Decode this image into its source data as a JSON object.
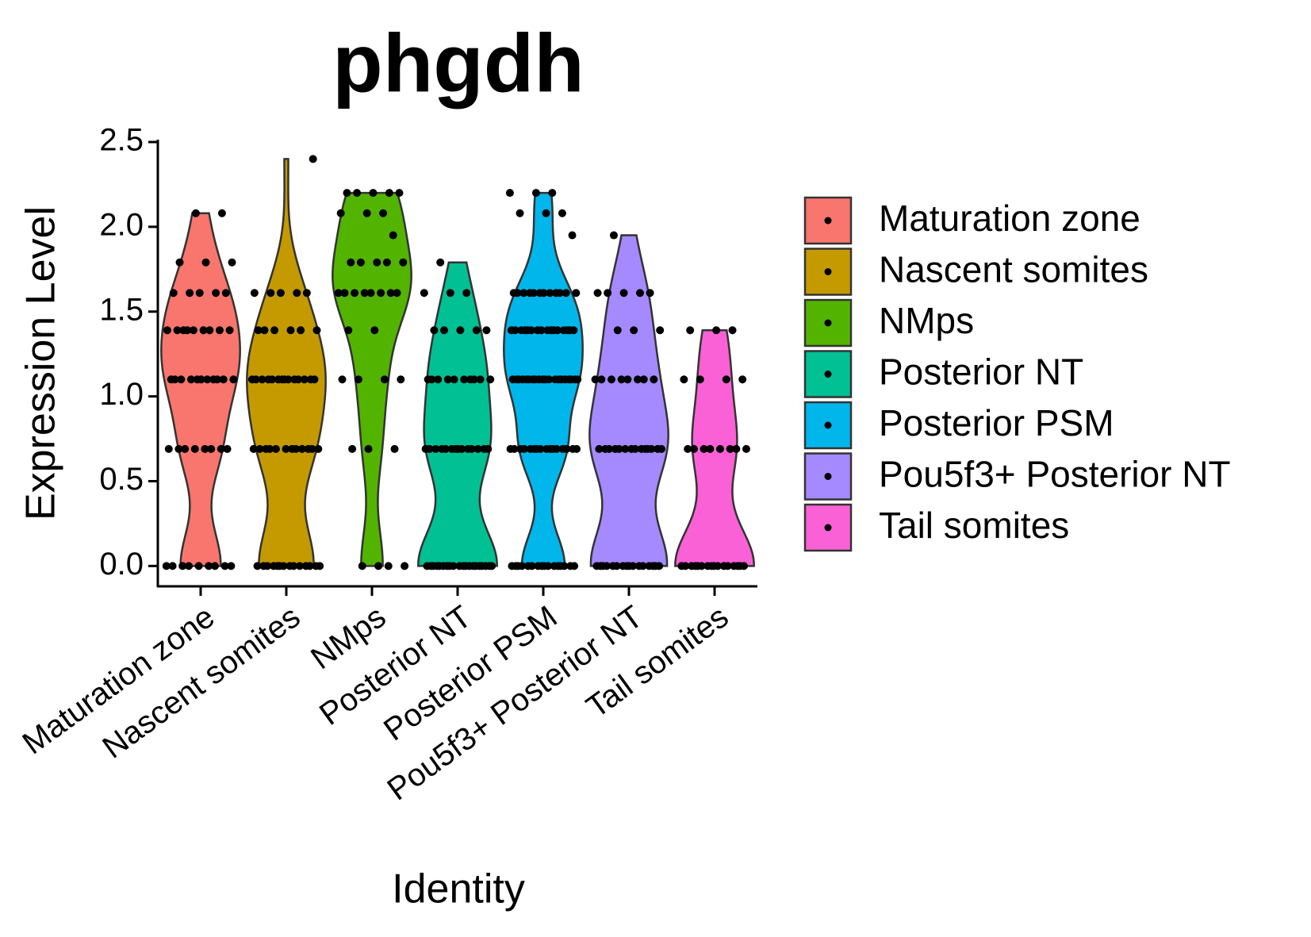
{
  "chart_data": {
    "type": "violin",
    "title": "phgdh",
    "x_label": "Identity",
    "y_label": "Expression Level",
    "categories": [
      "Maturation zone",
      "Nascent somites",
      "NMps",
      "Posterior NT",
      "Posterior PSM",
      "Pou5f3+ Posterior NT",
      "Tail somites"
    ],
    "ylim": [
      -0.12,
      2.5
    ],
    "yticks": [
      {
        "value": 0,
        "label": "0.0"
      },
      0.5,
      {
        "value": 1,
        "label": "1.0"
      },
      1.5,
      {
        "value": 2,
        "label": "2.0"
      },
      2.5
    ],
    "series": [
      {
        "name": "Maturation zone",
        "color": "#F8766D",
        "values": [
          0,
          0,
          0,
          0,
          0,
          0,
          0,
          0,
          0,
          0.69,
          0.69,
          0.69,
          0.69,
          0.69,
          0.69,
          0.69,
          0.69,
          1.1,
          1.1,
          1.1,
          1.1,
          1.1,
          1.1,
          1.1,
          1.1,
          1.1,
          1.1,
          1.1,
          1.39,
          1.39,
          1.39,
          1.39,
          1.39,
          1.39,
          1.39,
          1.39,
          1.39,
          1.61,
          1.61,
          1.61,
          1.61,
          1.61,
          1.79,
          1.79,
          1.79,
          2.08,
          2.08
        ]
      },
      {
        "name": "Nascent somites",
        "color": "#C49A00",
        "values": [
          0,
          0,
          0,
          0,
          0,
          0,
          0,
          0,
          0,
          0,
          0,
          0,
          0,
          0,
          0.69,
          0.69,
          0.69,
          0.69,
          0.69,
          0.69,
          0.69,
          0.69,
          0.69,
          0.69,
          0.69,
          0.69,
          1.1,
          1.1,
          1.1,
          1.1,
          1.1,
          1.1,
          1.1,
          1.1,
          1.1,
          1.1,
          1.1,
          1.1,
          1.1,
          1.1,
          1.39,
          1.39,
          1.39,
          1.39,
          1.39,
          1.39,
          1.61,
          1.61,
          1.61,
          1.61,
          1.61,
          2.4
        ]
      },
      {
        "name": "NMps",
        "color": "#53B400",
        "values": [
          0,
          0,
          0,
          0,
          0.69,
          0.69,
          0.69,
          1.1,
          1.1,
          1.1,
          1.1,
          1.39,
          1.39,
          1.61,
          1.61,
          1.61,
          1.61,
          1.61,
          1.61,
          1.61,
          1.61,
          1.79,
          1.79,
          1.79,
          1.79,
          1.79,
          1.95,
          2.08,
          2.08,
          2.08,
          2.2,
          2.2,
          2.2,
          2.2,
          2.2
        ]
      },
      {
        "name": "Posterior NT",
        "color": "#00C094",
        "values": [
          0,
          0,
          0,
          0,
          0,
          0,
          0,
          0,
          0,
          0,
          0,
          0,
          0,
          0,
          0,
          0,
          0,
          0,
          0,
          0,
          0.69,
          0.69,
          0.69,
          0.69,
          0.69,
          0.69,
          0.69,
          0.69,
          0.69,
          0.69,
          0.69,
          0.69,
          0.69,
          0.69,
          1.1,
          1.1,
          1.1,
          1.1,
          1.1,
          1.1,
          1.1,
          1.1,
          1.1,
          1.1,
          1.39,
          1.39,
          1.39,
          1.39,
          1.39,
          1.61,
          1.61,
          1.61,
          1.79
        ]
      },
      {
        "name": "Posterior PSM",
        "color": "#00B6EB",
        "values": [
          0,
          0,
          0,
          0,
          0,
          0,
          0,
          0,
          0,
          0,
          0,
          0,
          0,
          0,
          0,
          0,
          0.69,
          0.69,
          0.69,
          0.69,
          0.69,
          0.69,
          0.69,
          0.69,
          0.69,
          0.69,
          0.69,
          0.69,
          0.69,
          0.69,
          0.69,
          0.69,
          1.1,
          1.1,
          1.1,
          1.1,
          1.1,
          1.1,
          1.1,
          1.1,
          1.1,
          1.1,
          1.1,
          1.1,
          1.1,
          1.1,
          1.1,
          1.1,
          1.1,
          1.1,
          1.1,
          1.1,
          1.39,
          1.39,
          1.39,
          1.39,
          1.39,
          1.39,
          1.39,
          1.39,
          1.39,
          1.39,
          1.39,
          1.39,
          1.39,
          1.39,
          1.39,
          1.39,
          1.61,
          1.61,
          1.61,
          1.61,
          1.61,
          1.61,
          1.61,
          1.61,
          1.61,
          1.61,
          1.61,
          1.61,
          1.95,
          2.08,
          2.08,
          2.08,
          2.2,
          2.2,
          2.2
        ]
      },
      {
        "name": "Pou5f3+ Posterior NT",
        "color": "#A58AFF",
        "values": [
          0,
          0,
          0,
          0,
          0,
          0,
          0,
          0,
          0,
          0,
          0,
          0,
          0,
          0,
          0,
          0,
          0.69,
          0.69,
          0.69,
          0.69,
          0.69,
          0.69,
          0.69,
          0.69,
          0.69,
          0.69,
          0.69,
          0.69,
          0.69,
          0.69,
          1.1,
          1.1,
          1.1,
          1.1,
          1.1,
          1.1,
          1.1,
          1.1,
          1.39,
          1.39,
          1.39,
          1.61,
          1.61,
          1.61,
          1.61,
          1.61,
          1.95
        ]
      },
      {
        "name": "Tail somites",
        "color": "#FB61D7",
        "values": [
          0,
          0,
          0,
          0,
          0,
          0,
          0,
          0,
          0,
          0,
          0,
          0,
          0,
          0,
          0,
          0,
          0.69,
          0.69,
          0.69,
          0.69,
          0.69,
          0.69,
          0.69,
          0.69,
          1.1,
          1.1,
          1.1,
          1.1,
          1.39,
          1.39,
          1.39
        ]
      }
    ]
  }
}
